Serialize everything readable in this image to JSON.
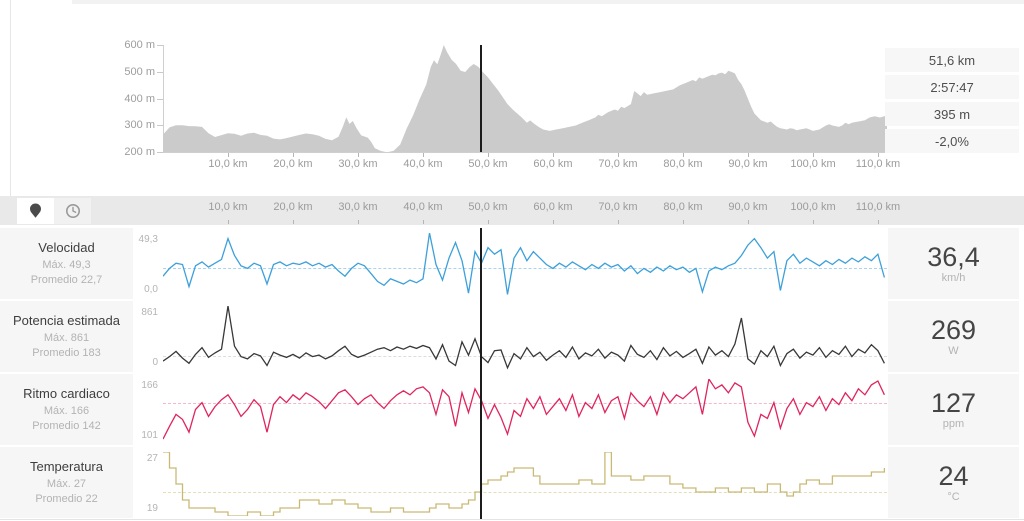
{
  "stats_panel": {
    "distance": "51,6 km",
    "time": "2:57:47",
    "elevation_gain": "395 m",
    "grade": "-2,0%"
  },
  "toolbar": {
    "distance_mode_icon": "map-pin-icon",
    "time_mode_icon": "clock-icon"
  },
  "axis": {
    "x_tick_labels": [
      "10,0 km",
      "20,0 km",
      "30,0 km",
      "40,0 km",
      "50,0 km",
      "60,0 km",
      "70,0 km",
      "80,0 km",
      "90,0 km",
      "100,0 km",
      "110,0 km"
    ],
    "elev_y_tick_labels": [
      "600 m",
      "500 m",
      "400 m",
      "300 m",
      "200 m"
    ]
  },
  "chart_data": {
    "x_max_km": 111.4,
    "cursor_km": 48.9,
    "elevation": {
      "type": "area",
      "fill": "#cbcbcb",
      "ylim": [
        200,
        600
      ],
      "xlim": [
        0,
        111.4
      ],
      "points": [
        [
          0,
          265
        ],
        [
          1,
          292
        ],
        [
          2,
          300
        ],
        [
          3,
          300
        ],
        [
          4,
          297
        ],
        [
          5,
          296
        ],
        [
          6,
          294
        ],
        [
          7,
          270
        ],
        [
          8,
          256
        ],
        [
          9,
          263
        ],
        [
          10,
          270
        ],
        [
          11,
          268
        ],
        [
          12,
          261
        ],
        [
          13,
          269
        ],
        [
          14,
          272
        ],
        [
          15,
          264
        ],
        [
          16,
          261
        ],
        [
          17,
          250
        ],
        [
          18,
          247
        ],
        [
          19,
          252
        ],
        [
          20,
          258
        ],
        [
          21,
          264
        ],
        [
          22,
          269
        ],
        [
          23,
          266
        ],
        [
          24,
          261
        ],
        [
          25,
          249
        ],
        [
          26,
          244
        ],
        [
          27,
          257
        ],
        [
          27.7,
          296
        ],
        [
          28.2,
          330
        ],
        [
          28.7,
          305
        ],
        [
          29.2,
          316
        ],
        [
          29.8,
          288
        ],
        [
          30.5,
          262
        ],
        [
          31.5,
          254
        ],
        [
          32,
          239
        ],
        [
          32.6,
          214
        ],
        [
          33.5,
          204
        ],
        [
          34.5,
          199
        ],
        [
          35.5,
          205
        ],
        [
          36.5,
          228
        ],
        [
          37.5,
          288
        ],
        [
          38.5,
          338
        ],
        [
          39.5,
          398
        ],
        [
          40.5,
          452
        ],
        [
          41.2,
          518
        ],
        [
          41.7,
          543
        ],
        [
          42.2,
          528
        ],
        [
          42.7,
          562
        ],
        [
          43.2,
          600
        ],
        [
          43.7,
          574
        ],
        [
          44.4,
          545
        ],
        [
          45.1,
          529
        ],
        [
          45.8,
          504
        ],
        [
          46.5,
          499
        ],
        [
          47.2,
          518
        ],
        [
          47.8,
          529
        ],
        [
          48.5,
          519
        ],
        [
          49.2,
          499
        ],
        [
          50,
          479
        ],
        [
          50.8,
          454
        ],
        [
          51.6,
          429
        ],
        [
          52.3,
          404
        ],
        [
          53,
          379
        ],
        [
          53.8,
          359
        ],
        [
          54.5,
          344
        ],
        [
          55.2,
          329
        ],
        [
          56,
          309
        ],
        [
          56.5,
          318
        ],
        [
          57,
          308
        ],
        [
          57.8,
          294
        ],
        [
          58.5,
          284
        ],
        [
          59.5,
          279
        ],
        [
          60.5,
          284
        ],
        [
          61.5,
          289
        ],
        [
          62.5,
          294
        ],
        [
          63.5,
          299
        ],
        [
          64.5,
          309
        ],
        [
          65.5,
          319
        ],
        [
          66.5,
          329
        ],
        [
          67,
          339
        ],
        [
          67.5,
          334
        ],
        [
          68.5,
          349
        ],
        [
          69.5,
          359
        ],
        [
          70,
          354
        ],
        [
          70.5,
          369
        ],
        [
          71,
          364
        ],
        [
          72,
          379
        ],
        [
          72.5,
          428
        ],
        [
          73,
          419
        ],
        [
          73.5,
          409
        ],
        [
          74,
          424
        ],
        [
          74.5,
          414
        ],
        [
          75.5,
          419
        ],
        [
          76.5,
          424
        ],
        [
          77.5,
          429
        ],
        [
          78.5,
          434
        ],
        [
          79.5,
          449
        ],
        [
          80.5,
          459
        ],
        [
          81.5,
          469
        ],
        [
          82,
          464
        ],
        [
          82.5,
          479
        ],
        [
          83,
          474
        ],
        [
          84,
          484
        ],
        [
          84.5,
          489
        ],
        [
          85,
          487
        ],
        [
          85.5,
          494
        ],
        [
          86,
          497
        ],
        [
          86.5,
          491
        ],
        [
          87,
          504
        ],
        [
          87.5,
          499
        ],
        [
          88,
          494
        ],
        [
          88.5,
          469
        ],
        [
          89,
          454
        ],
        [
          89.5,
          429
        ],
        [
          90,
          399
        ],
        [
          90.5,
          369
        ],
        [
          91,
          344
        ],
        [
          92,
          319
        ],
        [
          93,
          309
        ],
        [
          93.5,
          314
        ],
        [
          94,
          304
        ],
        [
          94.5,
          294
        ],
        [
          95,
          289
        ],
        [
          96,
          284
        ],
        [
          96.5,
          289
        ],
        [
          97,
          287
        ],
        [
          97.5,
          281
        ],
        [
          98,
          284
        ],
        [
          99,
          289
        ],
        [
          99.5,
          284
        ],
        [
          100,
          279
        ],
        [
          101,
          284
        ],
        [
          102,
          299
        ],
        [
          102.5,
          304
        ],
        [
          103,
          299
        ],
        [
          104,
          294
        ],
        [
          104.5,
          299
        ],
        [
          105,
          309
        ],
        [
          105.5,
          304
        ],
        [
          106,
          309
        ],
        [
          107,
          314
        ],
        [
          108,
          319
        ],
        [
          108.7,
          329
        ],
        [
          109.5,
          334
        ],
        [
          110.3,
          329
        ],
        [
          111,
          334
        ],
        [
          111.4,
          338
        ]
      ]
    },
    "streams": [
      {
        "id": "speed",
        "type": "line",
        "title": "Velocidad",
        "max_label": "Máx. 49,3",
        "avg_label": "Promedio 22,7",
        "ymax_label": "49,3",
        "ymin_label": "0,0",
        "current": "36,4",
        "unit": "km/h",
        "color": "#3da0da",
        "avg_color": "#a9d4ef",
        "ylim": [
          0,
          49.3
        ],
        "avg": 22.7,
        "step_line": false,
        "x_step_km": 1,
        "values": [
          16,
          22,
          26,
          25,
          8,
          24,
          27,
          23,
          26,
          29,
          45,
          32,
          24,
          22,
          26,
          24,
          10,
          25,
          27,
          24,
          26,
          25,
          27,
          24,
          26,
          23,
          25,
          20,
          16,
          22,
          26,
          24,
          18,
          12,
          9,
          14,
          12,
          10,
          13,
          11,
          14,
          49.3,
          25,
          13,
          30,
          42,
          28,
          3,
          35,
          26,
          38,
          33,
          36.4,
          2,
          30,
          38,
          28,
          35,
          30,
          25,
          22,
          26,
          23,
          27,
          24,
          21,
          25,
          22,
          26,
          23,
          25,
          20,
          24,
          18,
          22,
          19,
          23,
          20,
          24,
          21,
          23,
          19,
          22,
          4,
          20,
          23,
          21,
          24,
          26,
          32,
          40,
          45,
          38,
          30,
          35,
          5,
          28,
          33,
          26,
          30,
          27,
          24,
          28,
          25,
          29,
          26,
          30,
          27,
          31,
          28,
          33,
          15
        ]
      },
      {
        "id": "power",
        "type": "line",
        "title": "Potencia estimada",
        "max_label": "Máx. 861",
        "avg_label": "Promedio 183",
        "ymax_label": "861",
        "ymin_label": "0",
        "current": "269",
        "unit": "W",
        "color": "#383838",
        "avg_color": "#dddddd",
        "ylim": [
          0,
          861
        ],
        "avg": 183,
        "step_line": false,
        "x_step_km": 1,
        "values": [
          120,
          180,
          250,
          160,
          90,
          210,
          300,
          170,
          230,
          280,
          861,
          320,
          180,
          150,
          220,
          190,
          60,
          240,
          200,
          170,
          210,
          160,
          230,
          180,
          200,
          150,
          190,
          260,
          320,
          210,
          170,
          200,
          240,
          280,
          300,
          260,
          310,
          280,
          320,
          290,
          330,
          300,
          150,
          340,
          120,
          60,
          380,
          200,
          420,
          180,
          100,
          260,
          269,
          30,
          220,
          150,
          300,
          180,
          240,
          130,
          200,
          260,
          170,
          310,
          150,
          230,
          190,
          280,
          160,
          240,
          200,
          120,
          330,
          210,
          170,
          260,
          140,
          300,
          190,
          250,
          170,
          220,
          280,
          90,
          310,
          200,
          260,
          180,
          350,
          700,
          150,
          80,
          260,
          180,
          320,
          60,
          220,
          280,
          160,
          240,
          200,
          300,
          170,
          260,
          210,
          320,
          180,
          280,
          230,
          340,
          260,
          90
        ]
      },
      {
        "id": "heartrate",
        "type": "line",
        "title": "Ritmo cardiaco",
        "max_label": "Máx. 166",
        "avg_label": "Promedio 142",
        "ymax_label": "166",
        "ymin_label": "101",
        "current": "127",
        "unit": "ppm",
        "color": "#e0255e",
        "avg_color": "#f3b9cb",
        "ylim": [
          101,
          166
        ],
        "avg": 142,
        "step_line": false,
        "x_step_km": 1,
        "values": [
          105,
          118,
          130,
          125,
          112,
          135,
          142,
          128,
          138,
          145,
          150,
          140,
          128,
          135,
          145,
          138,
          112,
          140,
          148,
          142,
          150,
          145,
          152,
          148,
          143,
          136,
          144,
          152,
          155,
          148,
          140,
          146,
          150,
          142,
          136,
          144,
          150,
          154,
          150,
          156,
          158,
          152,
          130,
          155,
          148,
          118,
          152,
          132,
          156,
          144,
          126,
          140,
          127,
          110,
          134,
          128,
          146,
          136,
          148,
          130,
          138,
          146,
          134,
          150,
          128,
          142,
          136,
          150,
          132,
          144,
          148,
          126,
          152,
          144,
          138,
          148,
          130,
          152,
          142,
          150,
          146,
          152,
          158,
          130,
          166,
          156,
          160,
          152,
          162,
          158,
          122,
          108,
          130,
          126,
          142,
          116,
          136,
          146,
          130,
          142,
          138,
          148,
          134,
          146,
          140,
          152,
          144,
          156,
          150,
          160,
          164,
          150
        ]
      },
      {
        "id": "temperature",
        "type": "line",
        "title": "Temperatura",
        "max_label": "Máx. 27",
        "avg_label": "Promedio 22",
        "ymax_label": "27",
        "ymin_label": "19",
        "current": "24",
        "unit": "°C",
        "color": "#c9b976",
        "avg_color": "#e5deba",
        "ylim": [
          19,
          27
        ],
        "avg": 22,
        "step_line": true,
        "x_step_km": 1,
        "values": [
          27,
          25,
          23,
          21,
          20,
          20,
          20,
          20,
          19.5,
          19.5,
          19,
          19,
          19,
          19.5,
          19.5,
          19,
          19,
          19.5,
          20,
          20,
          20,
          21,
          21,
          21,
          20.5,
          20.5,
          21,
          21,
          20.5,
          20.5,
          20,
          20,
          19.5,
          19.5,
          19.5,
          20,
          20,
          19.5,
          19.5,
          19.5,
          19.5,
          20,
          20.5,
          20.5,
          20,
          20,
          20.5,
          21,
          22,
          23,
          23.5,
          23.5,
          24,
          24.5,
          25,
          25,
          25,
          24,
          23,
          23,
          23,
          23,
          23,
          23,
          23.5,
          23.5,
          23,
          23,
          27,
          24,
          24,
          24,
          23.5,
          23.5,
          24,
          24,
          24,
          24,
          23,
          23,
          22.5,
          22.5,
          22,
          22,
          22,
          22.5,
          22.5,
          22,
          22,
          22.5,
          22.5,
          22,
          22,
          23,
          23,
          22,
          21.5,
          22,
          23,
          23.5,
          23.5,
          23,
          23,
          24,
          24,
          24,
          24,
          24,
          24,
          24.5,
          24.5,
          25
        ]
      }
    ]
  }
}
